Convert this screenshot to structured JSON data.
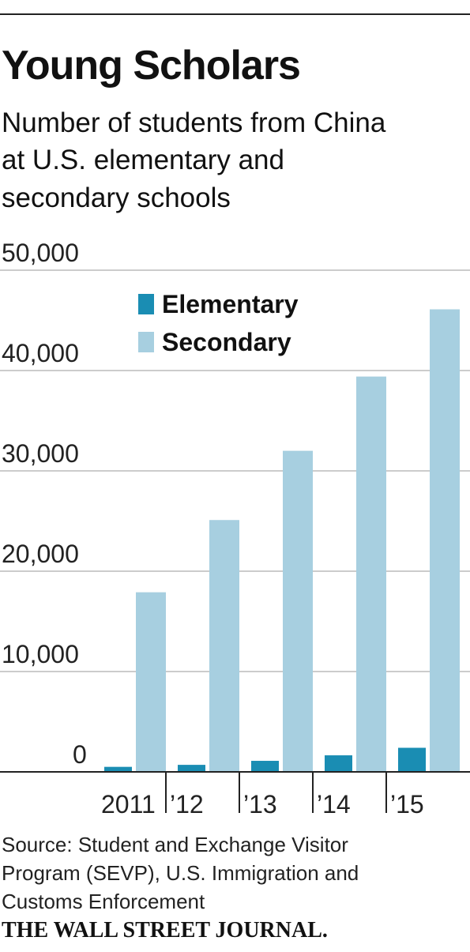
{
  "chart_data": {
    "type": "bar",
    "title": "Young Scholars",
    "subtitle": [
      "Number of students from China",
      "at U.S. elementary and",
      "secondary schools"
    ],
    "categories": [
      "2011",
      "’12",
      "’13",
      "’14",
      "’15"
    ],
    "series": [
      {
        "name": "Elementary",
        "color": "#1a8db3",
        "values": [
          500,
          700,
          1100,
          1650,
          2400
        ]
      },
      {
        "name": "Secondary",
        "color": "#a7cfe0",
        "values": [
          17900,
          25100,
          32000,
          39400,
          46100
        ]
      }
    ],
    "ylim": [
      0,
      50000
    ],
    "yticks": [
      0,
      {
        "value": 10000,
        "label": "10,000"
      },
      {
        "value": 20000,
        "label": "20,000"
      },
      {
        "value": 30000,
        "label": "30,000"
      },
      {
        "value": 40000,
        "label": "40,000"
      },
      {
        "value": 50000,
        "label": "50,000"
      }
    ],
    "grid": true,
    "source": [
      "Source: Student and Exchange Visitor",
      "Program (SEVP), U.S. Immigration and",
      "Customs Enforcement"
    ],
    "publisher": "THE WALL STREET JOURNAL."
  }
}
